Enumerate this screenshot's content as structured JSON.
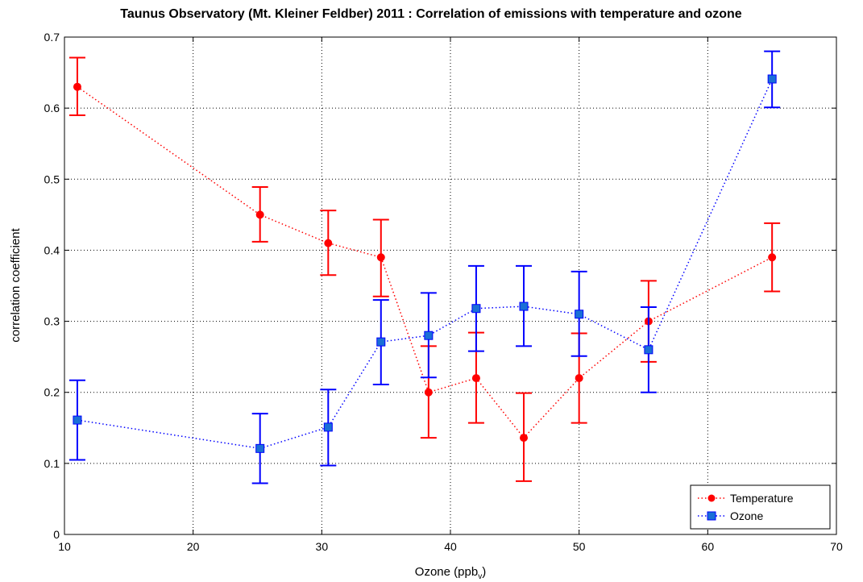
{
  "chart_data": {
    "type": "line",
    "title": "Taunus Observatory (Mt. Kleiner Feldber) 2011 : Correlation of emissions with temperature and ozone",
    "xlabel": "Ozone (ppb",
    "xlabel_sub": "v",
    "xlabel_close": ")",
    "ylabel": "correlation coefficient",
    "xlim": [
      10,
      70
    ],
    "ylim": [
      0,
      0.7
    ],
    "x_ticks": [
      "10",
      "20",
      "30",
      "40",
      "50",
      "60",
      "70"
    ],
    "y_ticks": [
      "0",
      "0.1",
      "0.2",
      "0.3",
      "0.4",
      "0.5",
      "0.6",
      "0.7"
    ],
    "grid": true,
    "legend_position": "bottom-right",
    "series": [
      {
        "name": "Temperature",
        "color": "#ff0000",
        "marker": "circle",
        "line_style": "dotted",
        "x": [
          11,
          25.2,
          30.5,
          34.6,
          38.3,
          42,
          45.7,
          50,
          55.4,
          65
        ],
        "y": [
          0.63,
          0.45,
          0.41,
          0.39,
          0.2,
          0.22,
          0.136,
          0.22,
          0.3,
          0.39
        ],
        "err_low": [
          0.59,
          0.412,
          0.365,
          0.335,
          0.136,
          0.157,
          0.075,
          0.157,
          0.243,
          0.342
        ],
        "err_high": [
          0.671,
          0.489,
          0.456,
          0.443,
          0.265,
          0.284,
          0.199,
          0.283,
          0.357,
          0.438
        ]
      },
      {
        "name": "Ozone",
        "color": "#0000ff",
        "marker_fill": "#1a6fd6",
        "marker": "square",
        "line_style": "dotted",
        "x": [
          11,
          25.2,
          30.5,
          34.6,
          38.3,
          42,
          45.7,
          50,
          55.4,
          65
        ],
        "y": [
          0.161,
          0.121,
          0.151,
          0.271,
          0.28,
          0.318,
          0.321,
          0.31,
          0.26,
          0.641
        ],
        "err_low": [
          0.105,
          0.072,
          0.097,
          0.211,
          0.221,
          0.258,
          0.265,
          0.251,
          0.2,
          0.601
        ],
        "err_high": [
          0.217,
          0.17,
          0.204,
          0.33,
          0.34,
          0.378,
          0.378,
          0.37,
          0.32,
          0.68
        ]
      }
    ]
  }
}
